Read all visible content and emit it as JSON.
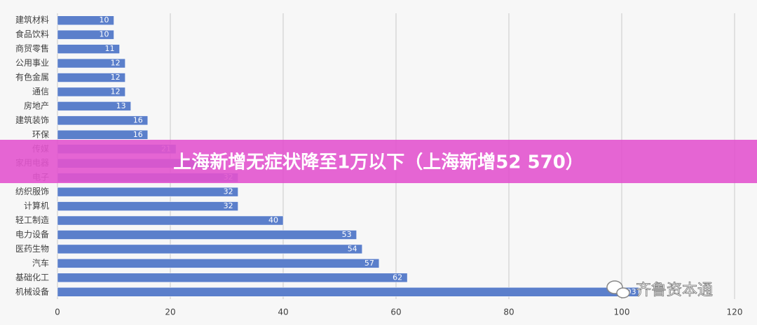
{
  "chart_data": {
    "type": "barh",
    "categories": [
      "建筑材料",
      "食品饮料",
      "商贸零售",
      "公用事业",
      "有色金属",
      "通信",
      "房地产",
      "建筑装饰",
      "环保",
      "传媒",
      "家用电器",
      "电子",
      "纺织服饰",
      "计算机",
      "轻工制造",
      "电力设备",
      "医药生物",
      "汽车",
      "基础化工",
      "机械设备"
    ],
    "values": [
      10,
      10,
      11,
      12,
      12,
      12,
      13,
      16,
      16,
      21,
      28,
      32,
      32,
      32,
      40,
      53,
      54,
      57,
      62,
      103
    ],
    "color": "#5b7fcb",
    "xlim": [
      0,
      120
    ],
    "xticks": [
      0,
      20,
      40,
      60,
      80,
      100,
      120
    ],
    "grid": true
  },
  "banner": "上海新增无症状降至1万以下（上海新增52 570）",
  "watermark": "齐鲁资本通"
}
